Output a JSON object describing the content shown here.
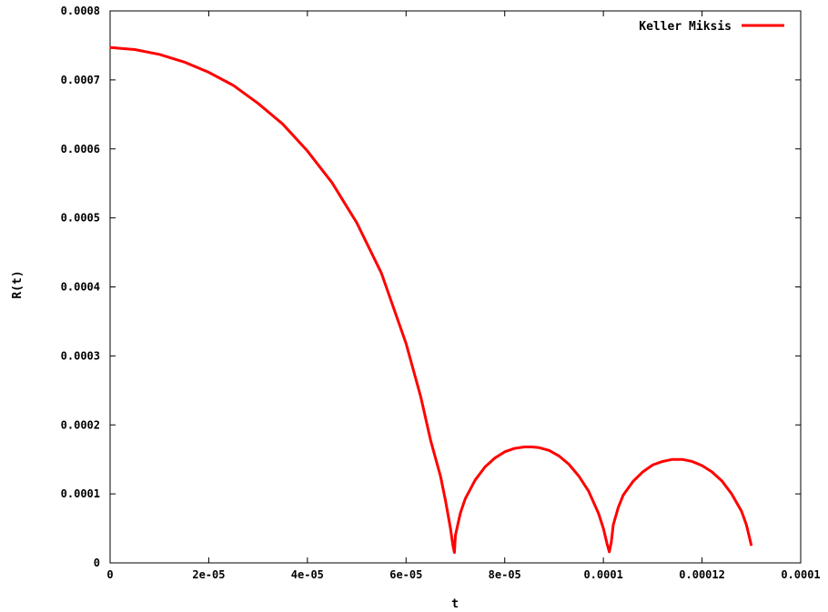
{
  "chart_data": {
    "type": "line",
    "title": "",
    "xlabel": "t",
    "ylabel": "R(t)",
    "xlim": [
      0,
      0.00014
    ],
    "ylim": [
      0,
      0.0008
    ],
    "x_ticks": [
      "0",
      "2e-05",
      "4e-05",
      "6e-05",
      "8e-05",
      "0.0001",
      "0.00012",
      "0.0001"
    ],
    "y_ticks": [
      "0",
      "0.0001",
      "0.0002",
      "0.0003",
      "0.0004",
      "0.0005",
      "0.0006",
      "0.0007",
      "0.0008"
    ],
    "grid": false,
    "legend_position": "top-right",
    "series": [
      {
        "name": "Keller Miksis",
        "color": "#ff0000",
        "x": [
          0,
          5e-06,
          1e-05,
          1.5e-05,
          2e-05,
          2.5e-05,
          3e-05,
          3.5e-05,
          4e-05,
          4.5e-05,
          5e-05,
          5.5e-05,
          6e-05,
          6.3e-05,
          6.5e-05,
          6.7e-05,
          6.8e-05,
          6.9e-05,
          6.95e-05,
          6.98e-05,
          7e-05,
          7.1e-05,
          7.2e-05,
          7.4e-05,
          7.6e-05,
          7.8e-05,
          8e-05,
          8.2e-05,
          8.4e-05,
          8.55e-05,
          8.7e-05,
          8.9e-05,
          9.1e-05,
          9.3e-05,
          9.5e-05,
          9.7e-05,
          9.9e-05,
          0.0001,
          0.0001008,
          0.0001012,
          0.0001016,
          0.000102,
          0.000103,
          0.000104,
          0.000106,
          0.000108,
          0.00011,
          0.000112,
          0.000114,
          0.000116,
          0.000118,
          0.00012,
          0.000122,
          0.000124,
          0.000126,
          0.000128,
          0.000129,
          0.00013
        ],
        "y": [
          0.000747,
          0.000744,
          0.000737,
          0.000726,
          0.000711,
          0.000692,
          0.000666,
          0.000636,
          0.000597,
          0.000551,
          0.000493,
          0.00042,
          0.000318,
          0.00024,
          0.000177,
          0.000125,
          9e-05,
          5e-05,
          2.5e-05,
          1.5e-05,
          4e-05,
          7.2e-05,
          9.3e-05,
          0.00012,
          0.000139,
          0.000152,
          0.000161,
          0.000166,
          0.000168,
          0.000168,
          0.000167,
          0.000163,
          0.000155,
          0.000143,
          0.000126,
          0.000104,
          7.2e-05,
          5e-05,
          2.6e-05,
          1.6e-05,
          3e-05,
          5.5e-05,
          8e-05,
          9.8e-05,
          0.000118,
          0.000132,
          0.000142,
          0.000147,
          0.00015,
          0.00015,
          0.000147,
          0.000141,
          0.000132,
          0.000119,
          0.0001,
          7.5e-05,
          5.5e-05,
          2.5e-05
        ]
      }
    ]
  }
}
